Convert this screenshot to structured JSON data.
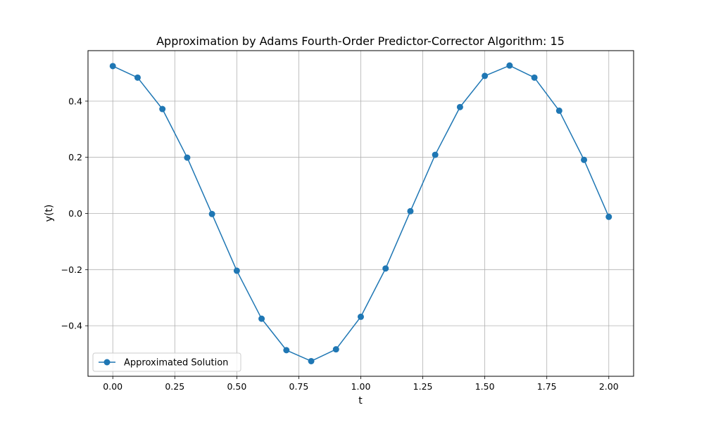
{
  "chart_data": {
    "type": "line",
    "title": "Approximation by Adams Fourth-Order Predictor-Corrector Algorithm: 15",
    "xlabel": "t",
    "ylabel": "y(t)",
    "xlim": [
      -0.1,
      2.1
    ],
    "ylim": [
      -0.58,
      0.58
    ],
    "xticks": [
      0.0,
      0.25,
      0.5,
      0.75,
      1.0,
      1.25,
      1.5,
      1.75,
      2.0
    ],
    "xtick_labels": [
      "0.00",
      "0.25",
      "0.50",
      "0.75",
      "1.00",
      "1.25",
      "1.50",
      "1.75",
      "2.00"
    ],
    "yticks": [
      -0.4,
      -0.2,
      0.0,
      0.2,
      0.4
    ],
    "ytick_labels": [
      "−0.4",
      "−0.2",
      "0.0",
      "0.2",
      "0.4"
    ],
    "grid": true,
    "legend_position": "lower-left",
    "series": [
      {
        "name": "Approximated Solution",
        "color": "#1f77b4",
        "marker": "circle",
        "x": [
          0.0,
          0.1,
          0.2,
          0.3,
          0.4,
          0.5,
          0.6,
          0.7,
          0.8,
          0.9,
          1.0,
          1.1,
          1.2,
          1.3,
          1.4,
          1.5,
          1.6,
          1.7,
          1.8,
          1.9,
          2.0
        ],
        "y": [
          0.525,
          0.484,
          0.372,
          0.199,
          -0.002,
          -0.204,
          -0.375,
          -0.487,
          -0.526,
          -0.484,
          -0.368,
          -0.196,
          0.008,
          0.209,
          0.379,
          0.49,
          0.527,
          0.484,
          0.366,
          0.191,
          -0.012
        ]
      }
    ]
  }
}
